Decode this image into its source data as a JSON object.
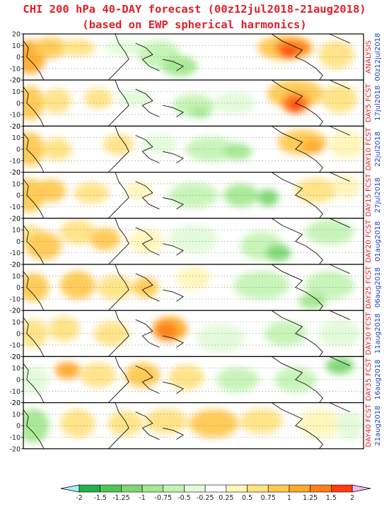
{
  "title_line1": "CHI 200 hPa 40-DAY forecast (00z12jul2018-21aug2018)",
  "title_line2": "(based on EWP spherical harmonics)",
  "chart_data": {
    "type": "heatmap",
    "title": "CHI 200 hPa 40-DAY forecast (00z12jul2018-21aug2018)",
    "subtitle": "(based on EWP spherical harmonics)",
    "ytick_labels": [
      "20",
      "10",
      "0",
      "-10",
      "-20"
    ],
    "colorbar_levels": [
      -2,
      -1.5,
      -1.25,
      -1,
      -0.75,
      -0.5,
      -0.25,
      0.25,
      0.5,
      0.75,
      1,
      1.25,
      1.5,
      2
    ],
    "colorbar_labels": [
      "-2",
      "-1.5",
      "-1.25",
      "-1",
      "-0.75",
      "-0.5",
      "-0.25",
      "0.25",
      "0.5",
      "0.75",
      "1",
      "1.25",
      "1.5",
      "2"
    ],
    "colorbar_colors": [
      "#22b14c",
      "#4cc850",
      "#7ed872",
      "#a4e890",
      "#c4f3b4",
      "#e3fbd9",
      "#ffffff",
      "#fff6b8",
      "#ffe383",
      "#ffc951",
      "#ffaa2a",
      "#ff7f1a",
      "#ff3d10"
    ],
    "under_color": "#a6f0f4",
    "over_color": "#f0b8f0",
    "panels": [
      {
        "label": "ANALYSIS",
        "date": "00z12jul2018"
      },
      {
        "label": "DAY5 FCST",
        "date": "17jul2018"
      },
      {
        "label": "DAY10 FCST",
        "date": "22jul2018"
      },
      {
        "label": "DAY15 FCST",
        "date": "27jul2018"
      },
      {
        "label": "DAY20 FCST",
        "date": "01aug2018"
      },
      {
        "label": "DAY25 FCST",
        "date": "06aug2018"
      },
      {
        "label": "DAY30 FCST",
        "date": "11aug2018"
      },
      {
        "label": "DAY35 FCST",
        "date": "16aug2018"
      },
      {
        "label": "DAY40 FCST",
        "date": "21aug2018"
      }
    ]
  }
}
